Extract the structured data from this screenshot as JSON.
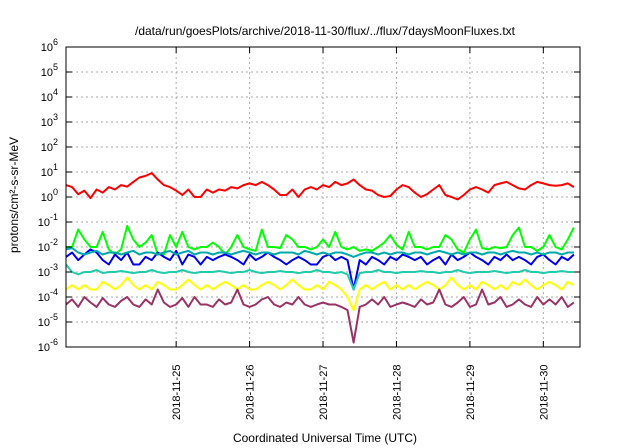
{
  "chart_data": {
    "type": "line",
    "title": "/data/run/goesPlots/archive/2018-11-30/flux/../flux/7daysMoonFluxes.txt",
    "xlabel": "Coordinated Universal Time (UTC)",
    "ylabel": "protons/cm²-s-sr-MeV",
    "yscale": "log",
    "ylim": [
      1e-06,
      1000000
    ],
    "y_ticks": [
      {
        "base": "10",
        "exp": "-6"
      },
      {
        "base": "10",
        "exp": "-5"
      },
      {
        "base": "10",
        "exp": "-4"
      },
      {
        "base": "10",
        "exp": "-3"
      },
      {
        "base": "10",
        "exp": "-2"
      },
      {
        "base": "10",
        "exp": "-1"
      },
      {
        "base": "10",
        "exp": "0"
      },
      {
        "base": "10",
        "exp": "1"
      },
      {
        "base": "10",
        "exp": "2"
      },
      {
        "base": "10",
        "exp": "3"
      },
      {
        "base": "10",
        "exp": "4"
      },
      {
        "base": "10",
        "exp": "5"
      },
      {
        "base": "10",
        "exp": "6"
      }
    ],
    "x_start": "2018-11-24T00:00",
    "x_end": "2018-11-30T23:59",
    "x_ticks": [
      "2018-11-25",
      "2018-11-26",
      "2018-11-27",
      "2018-11-28",
      "2018-11-29",
      "2018-11-30"
    ],
    "grid": true,
    "legend": "none",
    "x": [
      "2018-11-24T00:00",
      "2018-11-24T02:00",
      "2018-11-24T04:00",
      "2018-11-24T06:00",
      "2018-11-24T08:00",
      "2018-11-24T10:00",
      "2018-11-24T12:00",
      "2018-11-24T14:00",
      "2018-11-24T16:00",
      "2018-11-24T18:00",
      "2018-11-24T20:00",
      "2018-11-24T22:00",
      "2018-11-25T00:00",
      "2018-11-25T02:00",
      "2018-11-25T04:00",
      "2018-11-25T06:00",
      "2018-11-25T08:00",
      "2018-11-25T10:00",
      "2018-11-25T12:00",
      "2018-11-25T14:00",
      "2018-11-25T16:00",
      "2018-11-25T18:00",
      "2018-11-25T20:00",
      "2018-11-25T22:00",
      "2018-11-26T00:00",
      "2018-11-26T02:00",
      "2018-11-26T04:00",
      "2018-11-26T06:00",
      "2018-11-26T08:00",
      "2018-11-26T10:00",
      "2018-11-26T12:00",
      "2018-11-26T14:00",
      "2018-11-26T16:00",
      "2018-11-26T18:00",
      "2018-11-26T20:00",
      "2018-11-26T22:00",
      "2018-11-27T00:00",
      "2018-11-27T02:00",
      "2018-11-27T04:00",
      "2018-11-27T06:00",
      "2018-11-27T08:00",
      "2018-11-27T10:00",
      "2018-11-27T12:00",
      "2018-11-27T14:00",
      "2018-11-27T16:00",
      "2018-11-27T18:00",
      "2018-11-27T20:00",
      "2018-11-27T22:00",
      "2018-11-28T00:00",
      "2018-11-28T02:00",
      "2018-11-28T04:00",
      "2018-11-28T06:00",
      "2018-11-28T08:00",
      "2018-11-28T10:00",
      "2018-11-28T12:00",
      "2018-11-28T14:00",
      "2018-11-28T16:00",
      "2018-11-28T18:00",
      "2018-11-28T20:00",
      "2018-11-28T22:00",
      "2018-11-29T00:00",
      "2018-11-29T02:00",
      "2018-11-29T04:00",
      "2018-11-29T06:00",
      "2018-11-29T08:00",
      "2018-11-29T10:00",
      "2018-11-29T12:00",
      "2018-11-29T14:00",
      "2018-11-29T16:00",
      "2018-11-29T18:00",
      "2018-11-29T20:00",
      "2018-11-29T22:00",
      "2018-11-30T00:00",
      "2018-11-30T02:00",
      "2018-11-30T04:00",
      "2018-11-30T06:00",
      "2018-11-30T08:00",
      "2018-11-30T10:00",
      "2018-11-30T12:00",
      "2018-11-30T14:00",
      "2018-11-30T16:00",
      "2018-11-30T18:00",
      "2018-11-30T20:00",
      "2018-11-30T22:00"
    ],
    "series": [
      {
        "color": "#ff0000",
        "values": [
          3,
          2.5,
          1.3,
          1.8,
          0.9,
          2,
          1.5,
          2.5,
          2,
          3,
          2.6,
          4,
          6,
          7,
          9,
          5,
          3,
          2.5,
          1.8,
          1.2,
          2,
          1,
          1,
          2,
          1.5,
          2,
          1.8,
          2.5,
          2.2,
          3,
          3.5,
          3,
          4,
          3,
          2,
          1.2,
          1.2,
          2,
          1,
          2,
          2.5,
          2,
          3,
          2.5,
          4,
          3,
          3.5,
          5,
          3,
          2,
          1.8,
          1.2,
          1,
          1.1,
          2,
          3,
          2.5,
          1.5,
          1,
          1.3,
          2,
          3,
          1.2,
          1,
          0.8,
          1.2,
          2,
          2.5,
          2,
          1.5,
          3,
          3.5,
          4,
          3,
          2.2,
          2,
          3,
          4,
          3.5,
          3,
          2.8,
          3,
          3.5,
          2.5
        ]
      },
      {
        "color": "#00ff00",
        "values": [
          0.01,
          0.01,
          0.05,
          0.02,
          0.01,
          0.01,
          0.04,
          0.008,
          0.005,
          0.008,
          0.07,
          0.02,
          0.01,
          0.015,
          0.03,
          0.005,
          0.005,
          0.03,
          0.01,
          0.04,
          0.01,
          0.008,
          0.01,
          0.01,
          0.015,
          0.01,
          0.005,
          0.01,
          0.03,
          0.01,
          0.008,
          0.007,
          0.05,
          0.01,
          0.01,
          0.009,
          0.03,
          0.02,
          0.01,
          0.01,
          0.008,
          0.01,
          0.02,
          0.01,
          0.04,
          0.01,
          0.008,
          0.01,
          0.007,
          0.008,
          0.007,
          0.01,
          0.015,
          0.03,
          0.012,
          0.008,
          0.04,
          0.01,
          0.01,
          0.008,
          0.01,
          0.01,
          0.03,
          0.02,
          0.008,
          0.006,
          0.02,
          0.05,
          0.009,
          0.008,
          0.01,
          0.009,
          0.01,
          0.03,
          0.06,
          0.01,
          0.01,
          0.007,
          0.01,
          0.03,
          0.01,
          0.008,
          0.02,
          0.06
        ]
      },
      {
        "color": "#0000ee",
        "values": [
          0.004,
          0.006,
          0.003,
          0.005,
          0.008,
          0.006,
          0.003,
          0.002,
          0.005,
          0.003,
          0.006,
          0.002,
          0.002,
          0.004,
          0.003,
          0.006,
          0.004,
          0.003,
          0.007,
          0.002,
          0.005,
          0.004,
          0.002,
          0.004,
          0.003,
          0.004,
          0.005,
          0.004,
          0.003,
          0.002,
          0.005,
          0.003,
          0.004,
          0.006,
          0.004,
          0.003,
          0.002,
          0.003,
          0.004,
          0.003,
          0.002,
          0.002,
          0.004,
          0.005,
          0.003,
          0.004,
          0.003,
          0.0002,
          0.003,
          0.002,
          0.004,
          0.003,
          0.002,
          0.004,
          0.003,
          0.005,
          0.004,
          0.003,
          0.004,
          0.002,
          0.003,
          0.004,
          0.002,
          0.005,
          0.003,
          0.004,
          0.006,
          0.004,
          0.003,
          0.002,
          0.004,
          0.003,
          0.005,
          0.003,
          0.004,
          0.003,
          0.002,
          0.004,
          0.005,
          0.003,
          0.002,
          0.004,
          0.003,
          0.005
        ]
      },
      {
        "color": "#00aaaa",
        "values": [
          0.008,
          0.009,
          0.006,
          0.005,
          0.006,
          0.007,
          0.005,
          0.006,
          0.006,
          0.005,
          0.006,
          0.007,
          0.005,
          0.006,
          0.006,
          0.005,
          0.006,
          0.007,
          0.005,
          0.006,
          0.007,
          0.005,
          0.006,
          0.006,
          0.005,
          0.006,
          0.006,
          0.005,
          0.006,
          0.007,
          0.006,
          0.005,
          0.006,
          0.006,
          0.005,
          0.006,
          0.006,
          0.006,
          0.005,
          0.007,
          0.006,
          0.005,
          0.006,
          0.005,
          0.006,
          0.006,
          0.005,
          0.004,
          0.005,
          0.006,
          0.006,
          0.005,
          0.006,
          0.005,
          0.006,
          0.006,
          0.005,
          0.006,
          0.006,
          0.005,
          0.006,
          0.007,
          0.006,
          0.005,
          0.006,
          0.005,
          0.006,
          0.006,
          0.005,
          0.006,
          0.006,
          0.005,
          0.006,
          0.007,
          0.006,
          0.006,
          0.005,
          0.006,
          0.005,
          0.006,
          0.006,
          0.005,
          0.006,
          0.006
        ]
      },
      {
        "color": "#22ccaa",
        "values": [
          0.002,
          0.001,
          0.0008,
          0.001,
          0.001,
          0.0012,
          0.0009,
          0.001,
          0.001,
          0.0011,
          0.001,
          0.0009,
          0.001,
          0.001,
          0.0012,
          0.001,
          0.0009,
          0.001,
          0.001,
          0.0012,
          0.001,
          0.0009,
          0.001,
          0.001,
          0.001,
          0.0011,
          0.001,
          0.0009,
          0.001,
          0.001,
          0.0012,
          0.001,
          0.0009,
          0.001,
          0.001,
          0.0011,
          0.001,
          0.001,
          0.0009,
          0.001,
          0.001,
          0.0012,
          0.001,
          0.001,
          0.0009,
          0.001,
          0.0008,
          0.0002,
          0.0009,
          0.001,
          0.001,
          0.0012,
          0.001,
          0.001,
          0.0009,
          0.001,
          0.001,
          0.001,
          0.0011,
          0.001,
          0.001,
          0.0009,
          0.001,
          0.001,
          0.0012,
          0.001,
          0.0009,
          0.001,
          0.001,
          0.001,
          0.0011,
          0.001,
          0.0009,
          0.001,
          0.001,
          0.0012,
          0.001,
          0.001,
          0.0009,
          0.001,
          0.001,
          0.0011,
          0.001,
          0.001
        ]
      },
      {
        "color": "#ffff00",
        "values": [
          0.0002,
          0.0003,
          0.0002,
          0.0003,
          0.0002,
          0.0002,
          0.0004,
          0.0003,
          0.0002,
          0.0003,
          0.0006,
          0.0003,
          0.0002,
          0.0003,
          0.0002,
          0.0004,
          0.0003,
          0.0002,
          0.0002,
          0.0003,
          0.0005,
          0.0003,
          0.0002,
          0.0003,
          0.0002,
          0.0003,
          0.0004,
          0.0003,
          0.0002,
          0.0003,
          0.0002,
          0.0002,
          0.0003,
          0.0004,
          0.0003,
          0.0002,
          0.0003,
          0.0005,
          0.0003,
          0.0002,
          0.0002,
          0.0003,
          0.0002,
          0.0004,
          0.0003,
          0.0002,
          0.0001,
          3e-05,
          0.0002,
          0.0003,
          0.0002,
          0.0003,
          0.0004,
          0.0002,
          0.0003,
          0.0002,
          0.0003,
          0.0002,
          0.0003,
          0.0004,
          0.0003,
          0.0002,
          0.0003,
          0.0006,
          0.0003,
          0.0002,
          0.0003,
          0.0002,
          0.0004,
          0.0003,
          0.0002,
          0.0003,
          0.0002,
          0.0004,
          0.0003,
          0.0005,
          0.0003,
          0.0002,
          0.0003,
          0.0004,
          0.0003,
          0.0002,
          0.0004,
          0.0003
        ]
      },
      {
        "color": "#993366",
        "values": [
          5e-05,
          8e-05,
          4e-05,
          0.0001,
          6e-05,
          4e-05,
          9e-05,
          5e-05,
          4e-05,
          7e-05,
          0.0001,
          5e-05,
          4e-05,
          8e-05,
          5e-05,
          0.0002,
          6e-05,
          4e-05,
          5e-05,
          9e-05,
          4e-05,
          0.0001,
          5e-05,
          5e-05,
          4e-05,
          8e-05,
          5e-05,
          6e-05,
          0.0002,
          5e-05,
          4e-05,
          5e-05,
          8e-05,
          0.0001,
          5e-05,
          4e-05,
          6e-05,
          5e-05,
          0.0001,
          5e-05,
          4e-05,
          5e-05,
          6e-05,
          5e-05,
          5e-05,
          4e-05,
          3e-05,
          1.5e-06,
          4e-05,
          5e-05,
          8e-05,
          5e-05,
          0.0001,
          4e-05,
          5e-05,
          6e-05,
          5e-05,
          4e-05,
          8e-05,
          5e-05,
          6e-05,
          0.0002,
          5e-05,
          4e-05,
          6e-05,
          0.0001,
          4e-05,
          5e-05,
          0.0002,
          5e-05,
          6e-05,
          0.0001,
          4e-05,
          5e-05,
          8e-05,
          5e-05,
          4e-05,
          0.0001,
          5e-05,
          8e-05,
          5e-05,
          0.0001,
          4e-05,
          6e-05
        ]
      }
    ]
  }
}
